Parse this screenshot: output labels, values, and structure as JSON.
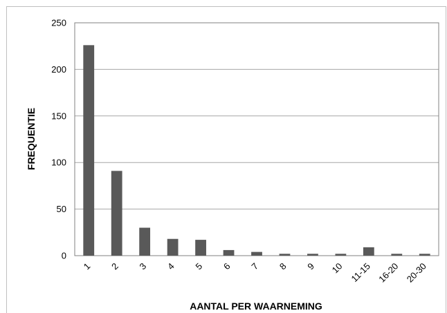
{
  "chart_data": {
    "type": "bar",
    "categories": [
      "1",
      "2",
      "3",
      "4",
      "5",
      "6",
      "7",
      "8",
      "9",
      "10",
      "11-15",
      "16-20",
      "20-30"
    ],
    "values": [
      226,
      91,
      30,
      18,
      17,
      6,
      4,
      2,
      2,
      2,
      9,
      2,
      2
    ],
    "title": "",
    "xlabel": "AANTAL PER WAARNEMING",
    "ylabel": "FREQUENTIE",
    "ylim": [
      0,
      250
    ],
    "yticks": [
      0,
      50,
      100,
      150,
      200,
      250
    ],
    "grid": true,
    "legend": "none",
    "colors": {
      "bar": "#595959",
      "gridline": "#a6a6a6",
      "plot_border": "#808080",
      "frame_border": "#bfbfbf"
    }
  }
}
